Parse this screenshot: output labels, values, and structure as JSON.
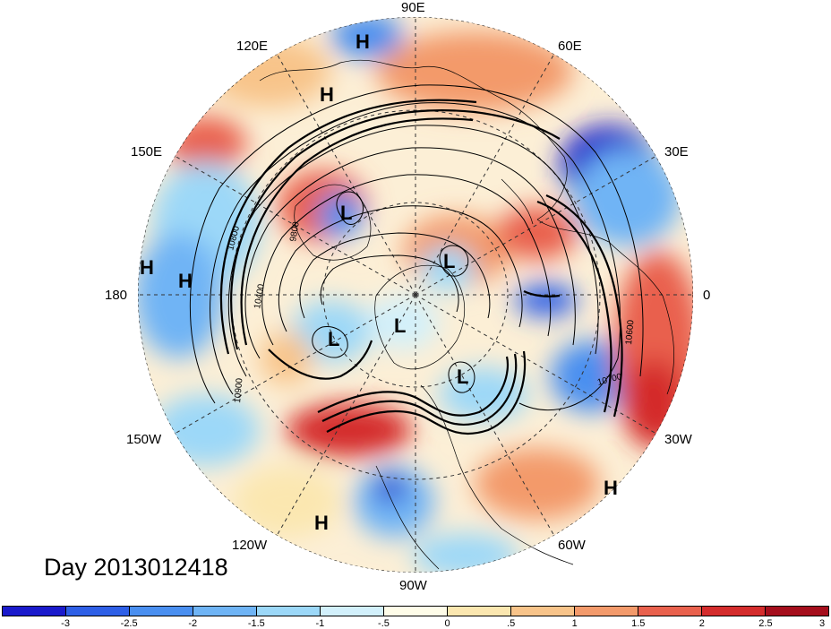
{
  "title": "Day 2013012418",
  "longitude_labels": {
    "lon_90E": "90E",
    "lon_120E": "120E",
    "lon_60E": "60E",
    "lon_150E": "150E",
    "lon_30E": "30E",
    "lon_180": "180",
    "lon_0": "0",
    "lon_150W": "150W",
    "lon_30W": "30W",
    "lon_120W": "120W",
    "lon_60W": "60W",
    "lon_90W": "90W"
  },
  "pressure_markers": {
    "high": "H",
    "low": "L"
  },
  "contour_labels": [
    "9800",
    "10900",
    "10800",
    "10700",
    "10400",
    "10600"
  ],
  "colorbar": {
    "colors": [
      "#1a1acc",
      "#2e5fe6",
      "#4a8ff0",
      "#6fb4f5",
      "#9cd8f8",
      "#d2f0fb",
      "#fefce8",
      "#fbe7b0",
      "#f8c48a",
      "#f39a6b",
      "#e9614d",
      "#d42c2c",
      "#a50e1c"
    ],
    "tick_labels": [
      "-3",
      "-2.5",
      "-2",
      "-1.5",
      "-1",
      "-.5",
      "0",
      ".5",
      "1",
      "1.5",
      "2",
      "2.5",
      "3"
    ]
  }
}
